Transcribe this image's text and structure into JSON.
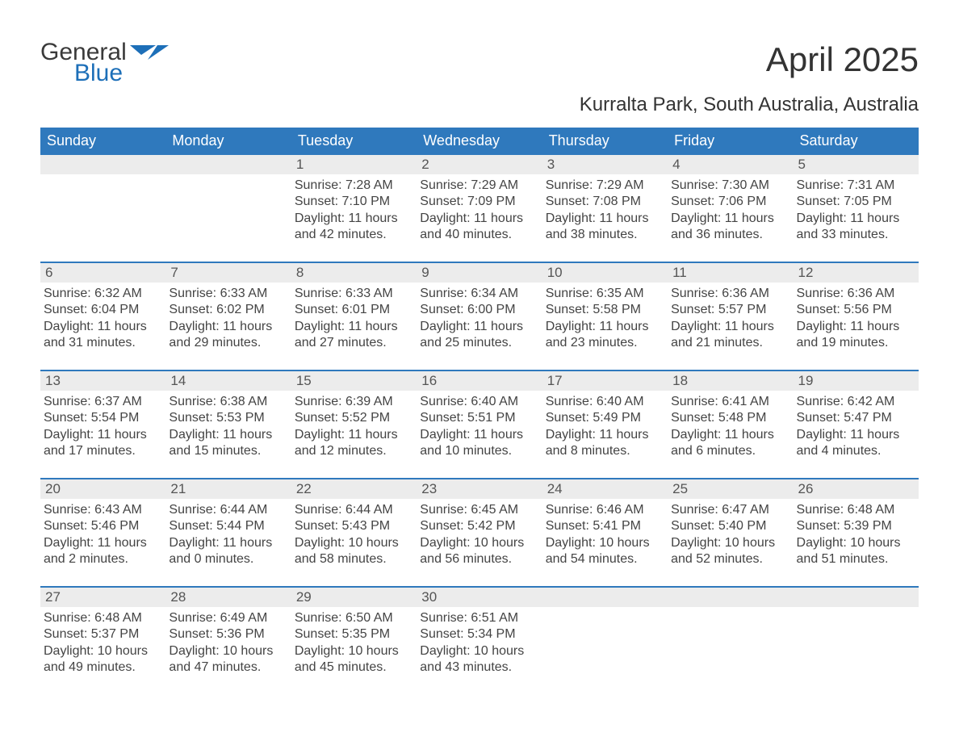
{
  "brand": {
    "line1": "General",
    "line2": "Blue",
    "flag_color": "#1d6fb8",
    "text_dark": "#3a3a3a"
  },
  "title": "April 2025",
  "location": "Kurralta Park, South Australia, Australia",
  "header_bg": "#2f79bd",
  "daynum_bg": "#ececec",
  "weekdays": [
    "Sunday",
    "Monday",
    "Tuesday",
    "Wednesday",
    "Thursday",
    "Friday",
    "Saturday"
  ],
  "weeks": [
    {
      "nums": [
        "",
        "",
        "1",
        "2",
        "3",
        "4",
        "5"
      ],
      "cells": [
        {
          "sunrise": "",
          "sunset": "",
          "daylight": ""
        },
        {
          "sunrise": "",
          "sunset": "",
          "daylight": ""
        },
        {
          "sunrise": "Sunrise: 7:28 AM",
          "sunset": "Sunset: 7:10 PM",
          "daylight": "Daylight: 11 hours and 42 minutes."
        },
        {
          "sunrise": "Sunrise: 7:29 AM",
          "sunset": "Sunset: 7:09 PM",
          "daylight": "Daylight: 11 hours and 40 minutes."
        },
        {
          "sunrise": "Sunrise: 7:29 AM",
          "sunset": "Sunset: 7:08 PM",
          "daylight": "Daylight: 11 hours and 38 minutes."
        },
        {
          "sunrise": "Sunrise: 7:30 AM",
          "sunset": "Sunset: 7:06 PM",
          "daylight": "Daylight: 11 hours and 36 minutes."
        },
        {
          "sunrise": "Sunrise: 7:31 AM",
          "sunset": "Sunset: 7:05 PM",
          "daylight": "Daylight: 11 hours and 33 minutes."
        }
      ]
    },
    {
      "nums": [
        "6",
        "7",
        "8",
        "9",
        "10",
        "11",
        "12"
      ],
      "cells": [
        {
          "sunrise": "Sunrise: 6:32 AM",
          "sunset": "Sunset: 6:04 PM",
          "daylight": "Daylight: 11 hours and 31 minutes."
        },
        {
          "sunrise": "Sunrise: 6:33 AM",
          "sunset": "Sunset: 6:02 PM",
          "daylight": "Daylight: 11 hours and 29 minutes."
        },
        {
          "sunrise": "Sunrise: 6:33 AM",
          "sunset": "Sunset: 6:01 PM",
          "daylight": "Daylight: 11 hours and 27 minutes."
        },
        {
          "sunrise": "Sunrise: 6:34 AM",
          "sunset": "Sunset: 6:00 PM",
          "daylight": "Daylight: 11 hours and 25 minutes."
        },
        {
          "sunrise": "Sunrise: 6:35 AM",
          "sunset": "Sunset: 5:58 PM",
          "daylight": "Daylight: 11 hours and 23 minutes."
        },
        {
          "sunrise": "Sunrise: 6:36 AM",
          "sunset": "Sunset: 5:57 PM",
          "daylight": "Daylight: 11 hours and 21 minutes."
        },
        {
          "sunrise": "Sunrise: 6:36 AM",
          "sunset": "Sunset: 5:56 PM",
          "daylight": "Daylight: 11 hours and 19 minutes."
        }
      ]
    },
    {
      "nums": [
        "13",
        "14",
        "15",
        "16",
        "17",
        "18",
        "19"
      ],
      "cells": [
        {
          "sunrise": "Sunrise: 6:37 AM",
          "sunset": "Sunset: 5:54 PM",
          "daylight": "Daylight: 11 hours and 17 minutes."
        },
        {
          "sunrise": "Sunrise: 6:38 AM",
          "sunset": "Sunset: 5:53 PM",
          "daylight": "Daylight: 11 hours and 15 minutes."
        },
        {
          "sunrise": "Sunrise: 6:39 AM",
          "sunset": "Sunset: 5:52 PM",
          "daylight": "Daylight: 11 hours and 12 minutes."
        },
        {
          "sunrise": "Sunrise: 6:40 AM",
          "sunset": "Sunset: 5:51 PM",
          "daylight": "Daylight: 11 hours and 10 minutes."
        },
        {
          "sunrise": "Sunrise: 6:40 AM",
          "sunset": "Sunset: 5:49 PM",
          "daylight": "Daylight: 11 hours and 8 minutes."
        },
        {
          "sunrise": "Sunrise: 6:41 AM",
          "sunset": "Sunset: 5:48 PM",
          "daylight": "Daylight: 11 hours and 6 minutes."
        },
        {
          "sunrise": "Sunrise: 6:42 AM",
          "sunset": "Sunset: 5:47 PM",
          "daylight": "Daylight: 11 hours and 4 minutes."
        }
      ]
    },
    {
      "nums": [
        "20",
        "21",
        "22",
        "23",
        "24",
        "25",
        "26"
      ],
      "cells": [
        {
          "sunrise": "Sunrise: 6:43 AM",
          "sunset": "Sunset: 5:46 PM",
          "daylight": "Daylight: 11 hours and 2 minutes."
        },
        {
          "sunrise": "Sunrise: 6:44 AM",
          "sunset": "Sunset: 5:44 PM",
          "daylight": "Daylight: 11 hours and 0 minutes."
        },
        {
          "sunrise": "Sunrise: 6:44 AM",
          "sunset": "Sunset: 5:43 PM",
          "daylight": "Daylight: 10 hours and 58 minutes."
        },
        {
          "sunrise": "Sunrise: 6:45 AM",
          "sunset": "Sunset: 5:42 PM",
          "daylight": "Daylight: 10 hours and 56 minutes."
        },
        {
          "sunrise": "Sunrise: 6:46 AM",
          "sunset": "Sunset: 5:41 PM",
          "daylight": "Daylight: 10 hours and 54 minutes."
        },
        {
          "sunrise": "Sunrise: 6:47 AM",
          "sunset": "Sunset: 5:40 PM",
          "daylight": "Daylight: 10 hours and 52 minutes."
        },
        {
          "sunrise": "Sunrise: 6:48 AM",
          "sunset": "Sunset: 5:39 PM",
          "daylight": "Daylight: 10 hours and 51 minutes."
        }
      ]
    },
    {
      "nums": [
        "27",
        "28",
        "29",
        "30",
        "",
        "",
        ""
      ],
      "cells": [
        {
          "sunrise": "Sunrise: 6:48 AM",
          "sunset": "Sunset: 5:37 PM",
          "daylight": "Daylight: 10 hours and 49 minutes."
        },
        {
          "sunrise": "Sunrise: 6:49 AM",
          "sunset": "Sunset: 5:36 PM",
          "daylight": "Daylight: 10 hours and 47 minutes."
        },
        {
          "sunrise": "Sunrise: 6:50 AM",
          "sunset": "Sunset: 5:35 PM",
          "daylight": "Daylight: 10 hours and 45 minutes."
        },
        {
          "sunrise": "Sunrise: 6:51 AM",
          "sunset": "Sunset: 5:34 PM",
          "daylight": "Daylight: 10 hours and 43 minutes."
        },
        {
          "sunrise": "",
          "sunset": "",
          "daylight": ""
        },
        {
          "sunrise": "",
          "sunset": "",
          "daylight": ""
        },
        {
          "sunrise": "",
          "sunset": "",
          "daylight": ""
        }
      ]
    }
  ]
}
